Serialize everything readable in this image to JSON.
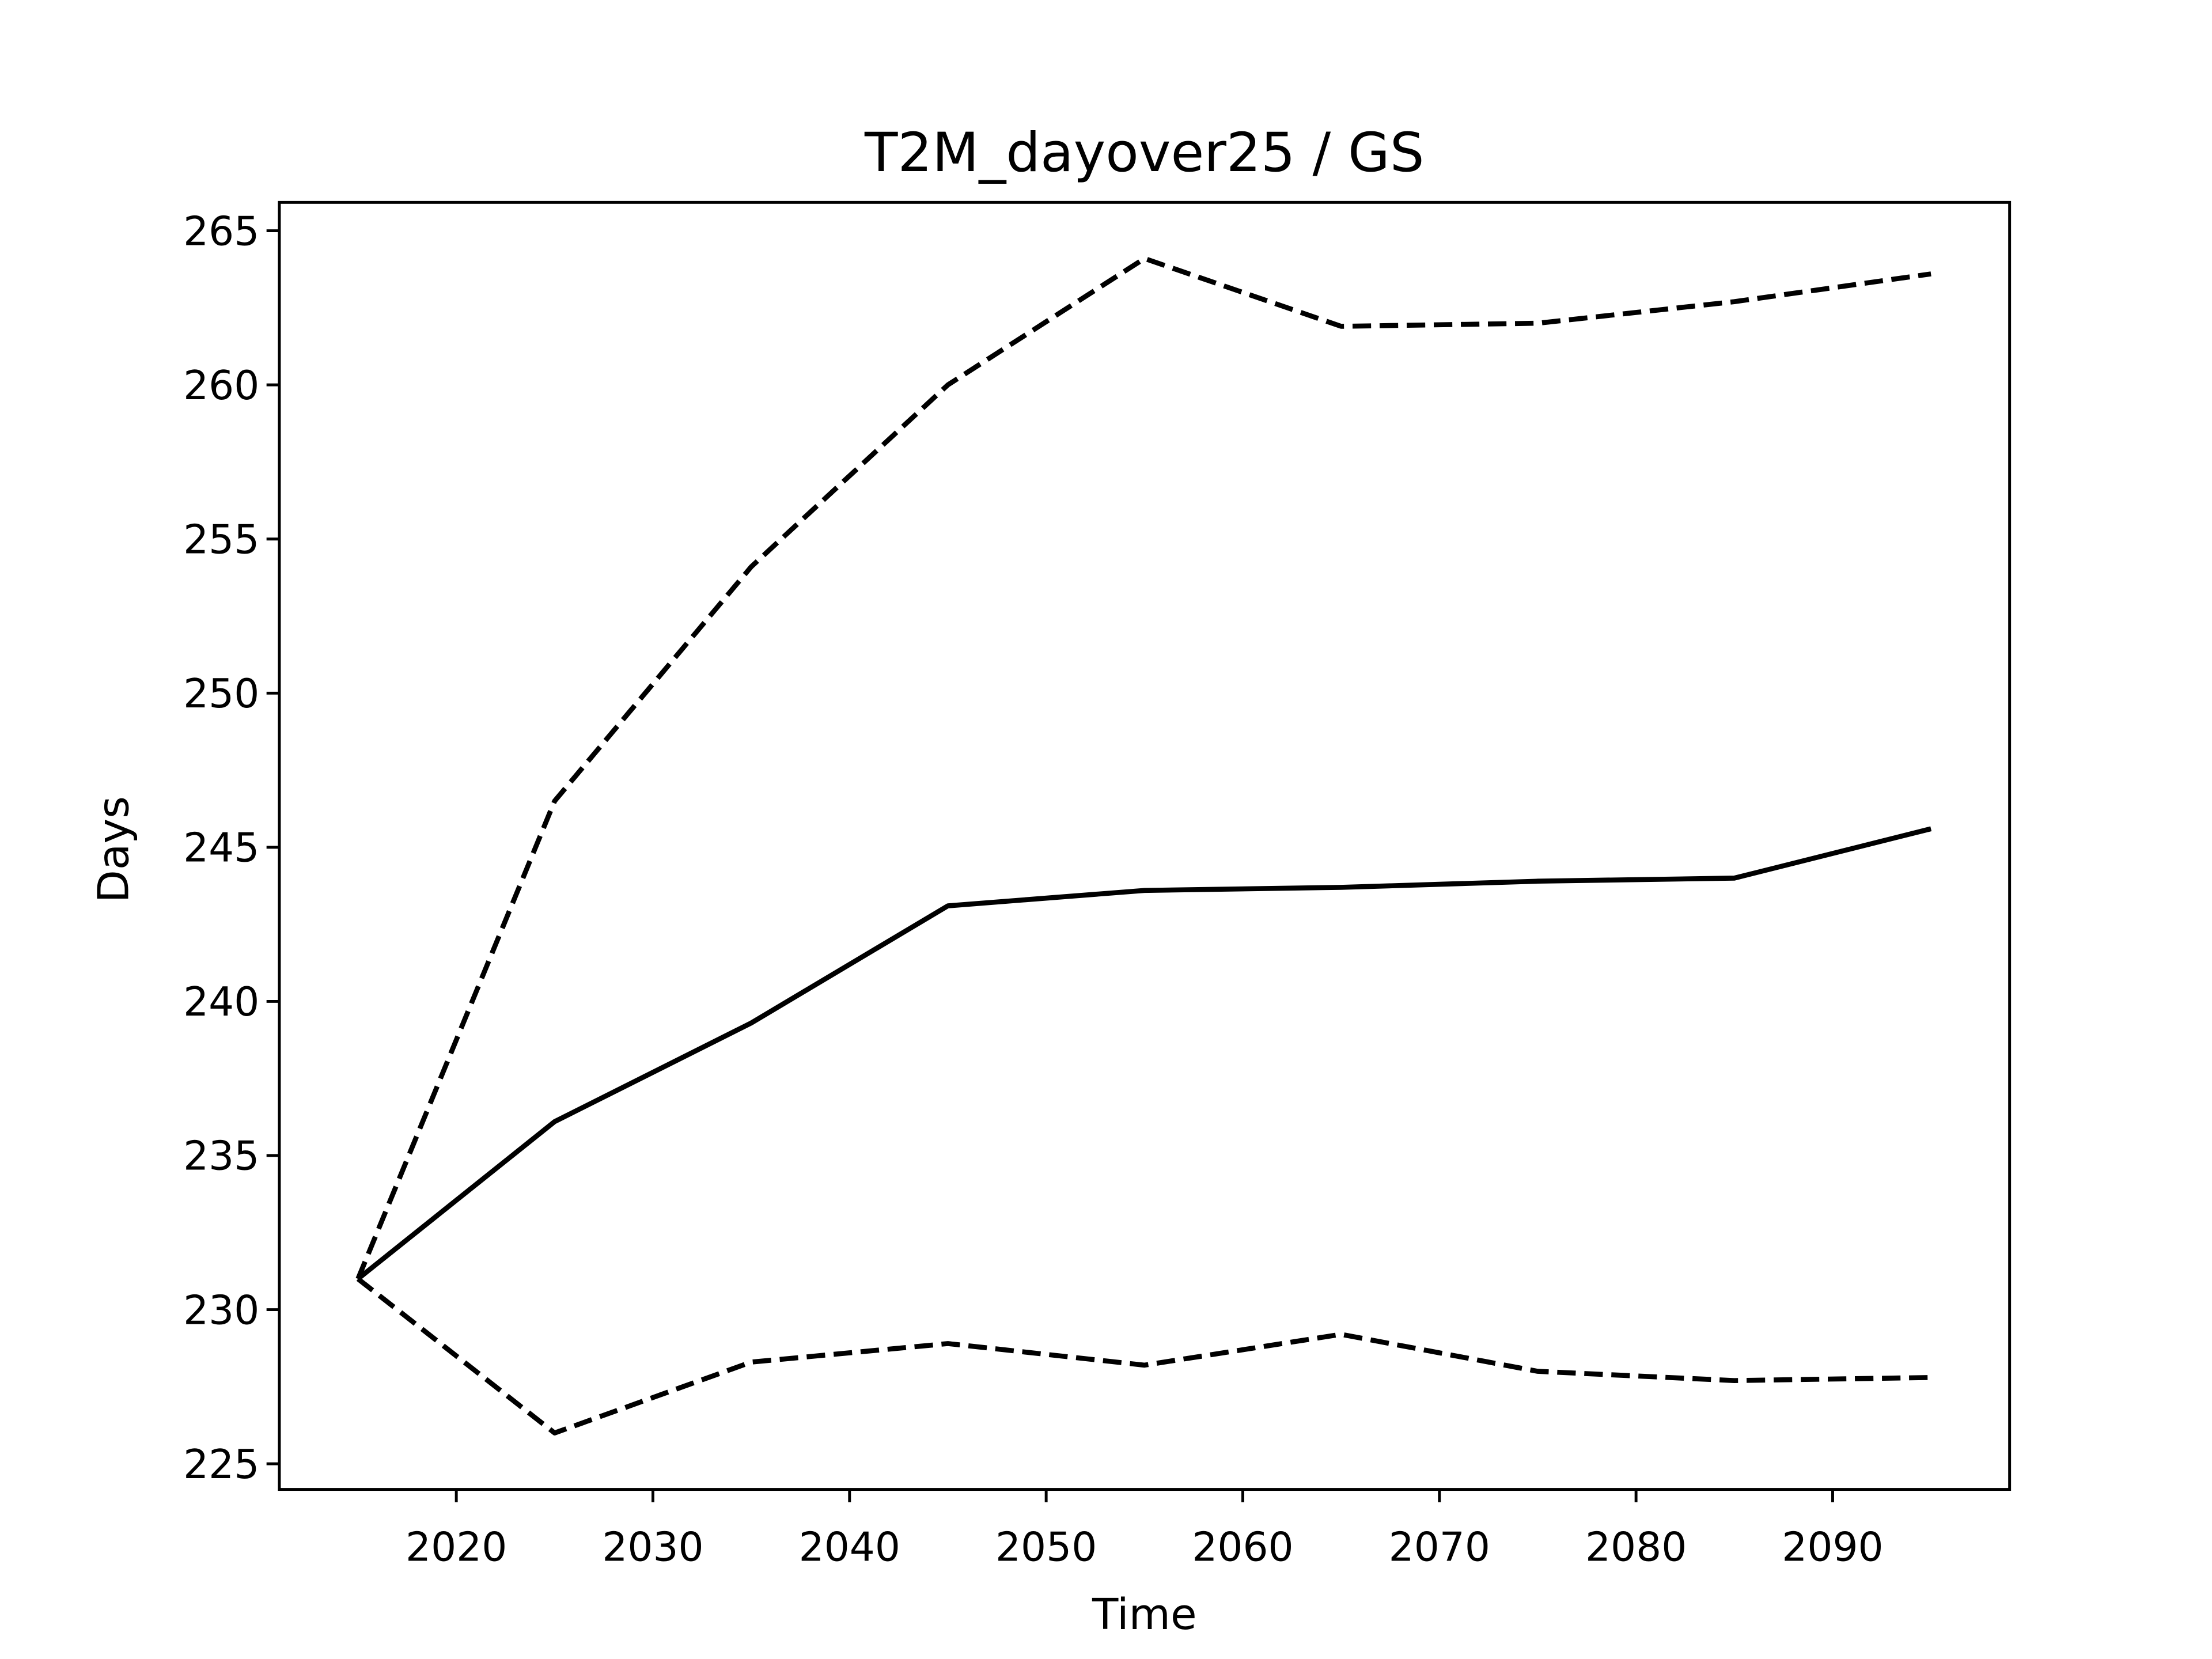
{
  "chart_data": {
    "type": "line",
    "title": "T2M_dayover25 / GS",
    "x_label": "Time",
    "y_label": "Days",
    "x": [
      2015,
      2025,
      2035,
      2045,
      2055,
      2065,
      2075,
      2085,
      2095
    ],
    "series": [
      {
        "color": "#000000",
        "dashed": false,
        "values": [
          231.0,
          236.1,
          239.3,
          243.1,
          243.6,
          243.7,
          243.9,
          244.0,
          245.6
        ]
      },
      {
        "color": "#000000",
        "dashed": true,
        "values": [
          231.0,
          246.5,
          254.1,
          260.0,
          264.1,
          261.9,
          262.0,
          262.7,
          263.6
        ]
      },
      {
        "color": "#000000",
        "dashed": true,
        "values": [
          231.0,
          226.0,
          228.3,
          228.9,
          228.2,
          229.2,
          228.0,
          227.7,
          227.8
        ]
      }
    ],
    "xlim": [
      2011.0,
      2099.0
    ],
    "xticks": [
      2020,
      2030,
      2040,
      2050,
      2060,
      2070,
      2080,
      2090
    ],
    "ylim": [
      224.17,
      265.92
    ],
    "yticks": [
      225,
      230,
      235,
      240,
      245,
      250,
      255,
      260,
      265
    ],
    "grid": false
  }
}
